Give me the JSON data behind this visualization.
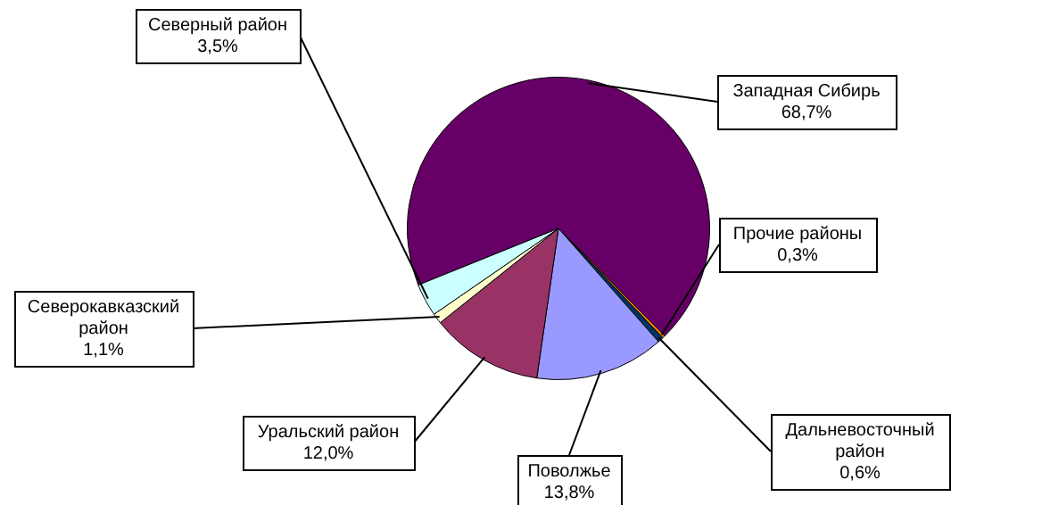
{
  "chart_data": {
    "type": "pie",
    "categories": [
      "Западная Сибирь",
      "Прочие районы",
      "Дальневосточный район",
      "Поволжье",
      "Уральский район",
      "Северокавказский район",
      "Северный район"
    ],
    "values": [
      68.7,
      0.3,
      0.6,
      13.8,
      12.0,
      1.1,
      3.5
    ],
    "value_labels": [
      "68,7%",
      "0,3%",
      "0,6%",
      "13,8%",
      "12,0%",
      "1,1%",
      "3,5%"
    ],
    "colors": [
      "#660066",
      "#ff8000",
      "#003366",
      "#9999ff",
      "#993366",
      "#ffffcc",
      "#ccffff"
    ],
    "legend": false
  }
}
